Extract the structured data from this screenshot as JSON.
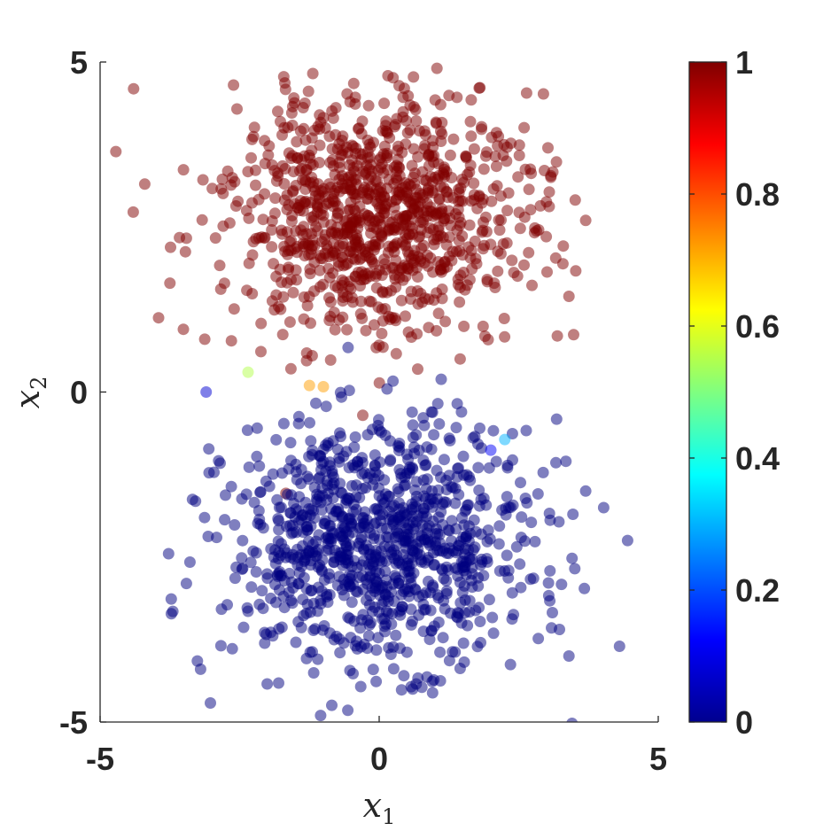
{
  "chart_data": {
    "type": "scatter",
    "title": "",
    "xlabel": {
      "base": "x",
      "sub": "1"
    },
    "ylabel": {
      "base": "x",
      "sub": "2"
    },
    "xlim": [
      -5,
      5
    ],
    "ylim": [
      -5,
      5
    ],
    "xticks": [
      -5,
      0,
      5
    ],
    "xtick_labels": [
      "-5",
      "0",
      "5"
    ],
    "yticks": [
      -5,
      0,
      5
    ],
    "ytick_labels": [
      "-5",
      "0",
      "5"
    ],
    "grid": false,
    "colormap": "jet",
    "colorbar": {
      "range": [
        0,
        1
      ],
      "ticks": [
        0,
        0.2,
        0.4,
        0.6,
        0.8,
        1
      ],
      "tick_labels": [
        "0",
        "0.2",
        "0.4",
        "0.6",
        "0.8",
        "1"
      ]
    },
    "marker_alpha": 0.5,
    "clusters": [
      {
        "value": 1,
        "center": [
          0,
          2.7
        ],
        "spread": [
          1.35,
          0.9
        ],
        "count": 1000
      },
      {
        "value": 0,
        "center": [
          0,
          -2.3
        ],
        "spread": [
          1.35,
          0.9
        ],
        "count": 1000
      }
    ],
    "points": [
      {
        "x": -3.1,
        "y": 0.0,
        "v": 0.08
      },
      {
        "x": -2.35,
        "y": 0.3,
        "v": 0.55
      },
      {
        "x": -1.25,
        "y": 0.1,
        "v": 0.72
      },
      {
        "x": -1.0,
        "y": 0.08,
        "v": 0.72
      },
      {
        "x": 2.25,
        "y": -0.72,
        "v": 0.3
      },
      {
        "x": 2.0,
        "y": -0.88,
        "v": 0.12
      },
      {
        "x": -1.2,
        "y": 0.55,
        "v": 1.0
      },
      {
        "x": 1.45,
        "y": 0.5,
        "v": 1.0
      },
      {
        "x": -1.2,
        "y": -0.95,
        "v": 0.0
      },
      {
        "x": -1.05,
        "y": -4.9,
        "v": 0.0
      },
      {
        "x": 4.45,
        "y": -2.25,
        "v": 0.0
      },
      {
        "x": -4.2,
        "y": 3.15,
        "v": 1.0
      },
      {
        "x": 3.7,
        "y": 2.6,
        "v": 1.0
      },
      {
        "x": 0.45,
        "y": 4.6,
        "v": 1.0
      },
      {
        "x": -3.75,
        "y": 1.65,
        "v": 1.0
      },
      {
        "x": 3.4,
        "y": 1.45,
        "v": 1.0
      },
      {
        "x": 3.7,
        "y": -1.5,
        "v": 0.0
      },
      {
        "x": -3.2,
        "y": -4.2,
        "v": 0.0
      },
      {
        "x": 3.4,
        "y": -4.0,
        "v": 0.0
      },
      {
        "x": 0.6,
        "y": -4.5,
        "v": 0.0
      }
    ]
  }
}
